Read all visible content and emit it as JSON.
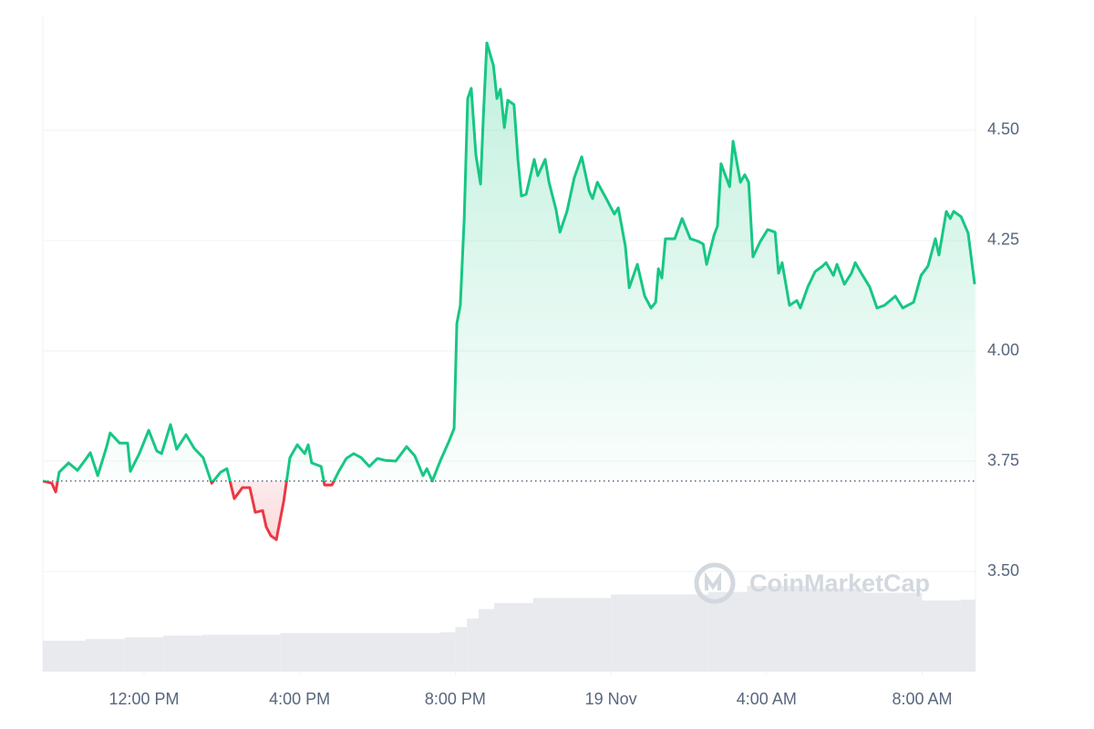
{
  "chart_data": {
    "type": "area",
    "watermark": "CoinMarketCap",
    "color_up": "#16c784",
    "color_down": "#ea3943",
    "baseline": 3.705,
    "grid": true,
    "xlim": [
      9.4,
      33.37
    ],
    "ylim": [
      3.273,
      4.758
    ],
    "xticks": [
      {
        "value": 12,
        "label": "12:00 PM"
      },
      {
        "value": 16,
        "label": "4:00 PM"
      },
      {
        "value": 20,
        "label": "8:00 PM"
      },
      {
        "value": 24,
        "label": "19 Nov"
      },
      {
        "value": 28,
        "label": "4:00 AM"
      },
      {
        "value": 32,
        "label": "8:00 AM"
      }
    ],
    "yticks": [
      {
        "value": 3.5,
        "label": "3.50"
      },
      {
        "value": 3.75,
        "label": "3.75"
      },
      {
        "value": 4,
        "label": "4.00"
      },
      {
        "value": 4.25,
        "label": "4.25"
      },
      {
        "value": 4.5,
        "label": "4.50"
      }
    ],
    "x": [
      9.4,
      9.63,
      9.73,
      9.82,
      10.06,
      10.29,
      10.5,
      10.62,
      10.81,
      11.04,
      11.13,
      11.37,
      11.58,
      11.65,
      11.88,
      12.12,
      12.33,
      12.45,
      12.68,
      12.84,
      13.08,
      13.29,
      13.52,
      13.74,
      13.97,
      14.13,
      14.32,
      14.53,
      14.72,
      14.86,
      15.05,
      15.14,
      15.26,
      15.4,
      15.59,
      15.75,
      15.94,
      16.13,
      16.22,
      16.31,
      16.55,
      16.64,
      16.83,
      17.02,
      17.2,
      17.39,
      17.58,
      17.79,
      18.0,
      18.19,
      18.47,
      18.75,
      18.96,
      19.17,
      19.27,
      19.41,
      19.62,
      19.83,
      19.97,
      20.04,
      20.13,
      20.23,
      20.32,
      20.41,
      20.53,
      20.65,
      20.72,
      20.81,
      20.98,
      21.07,
      21.16,
      21.26,
      21.35,
      21.51,
      21.61,
      21.7,
      21.82,
      22.03,
      22.12,
      22.31,
      22.41,
      22.59,
      22.69,
      22.87,
      23.06,
      23.25,
      23.44,
      23.53,
      23.65,
      23.88,
      24.09,
      24.19,
      24.37,
      24.47,
      24.68,
      24.87,
      25.03,
      25.15,
      25.22,
      25.31,
      25.4,
      25.64,
      25.83,
      26.04,
      26.25,
      26.37,
      26.46,
      26.65,
      26.74,
      26.83,
      27.05,
      27.14,
      27.33,
      27.44,
      27.54,
      27.65,
      27.84,
      28.03,
      28.22,
      28.31,
      28.4,
      28.59,
      28.78,
      28.87,
      29.06,
      29.25,
      29.44,
      29.53,
      29.72,
      29.81,
      30.0,
      30.18,
      30.28,
      30.47,
      30.65,
      30.84,
      31.03,
      31.31,
      31.5,
      31.78,
      31.97,
      32.15,
      32.34,
      32.43,
      32.62,
      32.72,
      32.81,
      33.0,
      33.18,
      33.35
    ],
    "values": [
      3.705,
      3.7,
      3.68,
      3.725,
      3.746,
      3.729,
      3.754,
      3.769,
      3.717,
      3.783,
      3.814,
      3.791,
      3.791,
      3.727,
      3.767,
      3.82,
      3.773,
      3.767,
      3.833,
      3.777,
      3.81,
      3.779,
      3.758,
      3.7,
      3.725,
      3.733,
      3.665,
      3.69,
      3.69,
      3.634,
      3.638,
      3.601,
      3.581,
      3.572,
      3.659,
      3.758,
      3.787,
      3.767,
      3.787,
      3.746,
      3.738,
      3.696,
      3.696,
      3.729,
      3.756,
      3.767,
      3.758,
      3.738,
      3.756,
      3.752,
      3.75,
      3.783,
      3.762,
      3.717,
      3.733,
      3.705,
      3.752,
      3.793,
      3.824,
      4.062,
      4.103,
      4.3,
      4.572,
      4.595,
      4.444,
      4.378,
      4.527,
      4.698,
      4.647,
      4.572,
      4.593,
      4.506,
      4.568,
      4.558,
      4.434,
      4.351,
      4.355,
      4.434,
      4.397,
      4.434,
      4.382,
      4.32,
      4.269,
      4.316,
      4.393,
      4.44,
      4.362,
      4.345,
      4.382,
      4.345,
      4.31,
      4.324,
      4.238,
      4.143,
      4.196,
      4.124,
      4.097,
      4.11,
      4.186,
      4.165,
      4.254,
      4.254,
      4.3,
      4.254,
      4.248,
      4.242,
      4.196,
      4.262,
      4.283,
      4.424,
      4.372,
      4.475,
      4.382,
      4.399,
      4.382,
      4.213,
      4.248,
      4.275,
      4.269,
      4.176,
      4.2,
      4.103,
      4.114,
      4.097,
      4.145,
      4.18,
      4.192,
      4.2,
      4.171,
      4.196,
      4.151,
      4.176,
      4.2,
      4.171,
      4.145,
      4.097,
      4.103,
      4.124,
      4.097,
      4.11,
      4.171,
      4.192,
      4.254,
      4.217,
      4.316,
      4.3,
      4.316,
      4.304,
      4.267,
      4.151
    ],
    "volume": {
      "color": "#e8eaee",
      "x": [
        9.4,
        10.5,
        11.5,
        12.5,
        13.5,
        15.5,
        17.5,
        19.6,
        20.0,
        20.3,
        20.6,
        21.0,
        22.0,
        24.0,
        26.5,
        27.5,
        29.0,
        30.5,
        32.0,
        33.0
      ],
      "values": [
        36,
        38,
        40,
        42,
        43,
        45,
        45,
        46,
        52,
        62,
        73,
        80,
        86,
        90,
        93,
        100,
        97,
        92,
        83,
        84
      ]
    }
  }
}
